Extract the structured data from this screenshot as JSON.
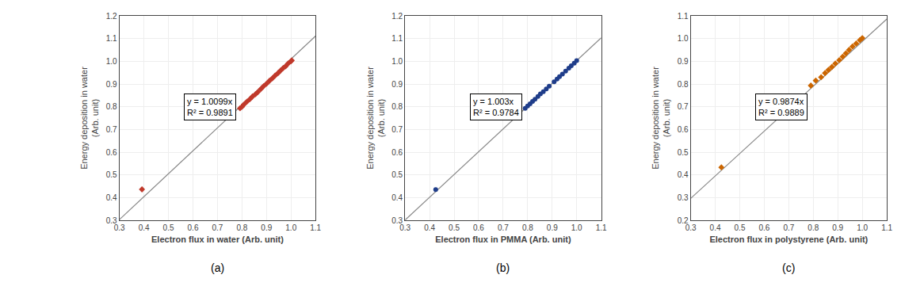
{
  "chart_data": [
    {
      "type": "scatter",
      "caption": "(a)",
      "xlabel": "Electron flux in water (Arb. unit)",
      "ylabel": "Energy deposition in water\n(Arb. unit)",
      "annotation": [
        "y = 1.0099x",
        "R² = 0.9891"
      ],
      "series": [
        {
          "type": "line",
          "color": "#888888",
          "line_style": "solid",
          "x": [
            0.3,
            1.1
          ],
          "values": [
            0.30297,
            1.11089
          ]
        },
        {
          "type": "scatter",
          "color": "#C0392B",
          "marker": "diamond",
          "x": [
            0.392,
            0.792,
            0.8,
            0.808,
            0.82,
            0.832,
            0.843,
            0.855,
            0.865,
            0.877,
            0.888,
            0.9,
            0.912,
            0.924,
            0.935,
            0.947,
            0.958,
            0.968,
            0.978,
            0.988,
            1.0,
            1.003
          ],
          "values": [
            0.436,
            0.793,
            0.8,
            0.81,
            0.822,
            0.833,
            0.845,
            0.855,
            0.865,
            0.878,
            0.89,
            0.901,
            0.914,
            0.925,
            0.937,
            0.948,
            0.96,
            0.97,
            0.978,
            0.99,
            1.0,
            1.004
          ]
        }
      ],
      "xlim": [
        0.3,
        1.1
      ],
      "xticks": [
        0.3,
        0.4,
        0.5,
        0.6,
        0.7,
        0.8,
        0.9,
        {
          "value": 1,
          "label": "1.0"
        },
        1.1
      ],
      "ylim": [
        0.3,
        1.2
      ],
      "yticks": [
        0.3,
        0.4,
        0.5,
        0.6,
        0.7,
        0.8,
        0.9,
        {
          "value": 1,
          "label": "1.0"
        },
        1.1,
        1.2
      ],
      "grid": true
    },
    {
      "type": "scatter",
      "caption": "(b)",
      "xlabel": "Electron flux in PMMA (Arb. unit)",
      "ylabel": "Energy deposition in water\n(Arb. unit)",
      "annotation": [
        "y = 1.003x",
        "R² = 0.9784"
      ],
      "series": [
        {
          "type": "line",
          "color": "#888888",
          "line_style": "solid",
          "x": [
            0.3,
            1.1
          ],
          "values": [
            0.3009,
            1.1033
          ]
        },
        {
          "type": "scatter",
          "color": "#1F3D8A",
          "marker": "circle",
          "x": [
            0.425,
            0.79,
            0.8,
            0.81,
            0.82,
            0.83,
            0.842,
            0.852,
            0.864,
            0.876,
            0.888,
            0.908,
            0.92,
            0.93,
            0.942,
            0.955,
            0.968,
            0.978,
            0.99,
            1.0
          ],
          "values": [
            0.435,
            0.793,
            0.803,
            0.813,
            0.823,
            0.833,
            0.845,
            0.856,
            0.866,
            0.878,
            0.89,
            0.91,
            0.922,
            0.932,
            0.944,
            0.957,
            0.97,
            0.98,
            0.992,
            1.003
          ]
        }
      ],
      "xlim": [
        0.3,
        1.1
      ],
      "xticks": [
        0.3,
        0.4,
        0.5,
        0.6,
        0.7,
        0.8,
        0.9,
        {
          "value": 1,
          "label": "1.0"
        },
        1.1
      ],
      "ylim": [
        0.3,
        1.2
      ],
      "yticks": [
        0.3,
        0.4,
        0.5,
        0.6,
        0.7,
        0.8,
        0.9,
        {
          "value": 1,
          "label": "1.0"
        },
        1.1,
        1.2
      ],
      "grid": true
    },
    {
      "type": "scatter",
      "caption": "(c)",
      "xlabel": "Electron flux in polystyrene (Arb. unit)",
      "ylabel": "Energy deposition in water\n(Arb. unit)",
      "annotation": [
        "y = 0.9874x",
        "R² = 0.9889"
      ],
      "series": [
        {
          "type": "line",
          "color": "#888888",
          "line_style": "solid",
          "x": [
            0.3,
            1.1
          ],
          "values": [
            0.29622,
            1.08614
          ]
        },
        {
          "type": "scatter",
          "color": "#CC6600",
          "marker": "diamond",
          "x": [
            0.425,
            0.79,
            0.81,
            0.832,
            0.848,
            0.862,
            0.876,
            0.89,
            0.906,
            0.92,
            0.933,
            0.946,
            0.96,
            0.975,
            0.99,
            1.0
          ],
          "values": [
            0.433,
            0.793,
            0.815,
            0.83,
            0.848,
            0.862,
            0.875,
            0.89,
            0.905,
            0.92,
            0.935,
            0.95,
            0.965,
            0.978,
            0.993,
            1.002
          ]
        }
      ],
      "xlim": [
        0.3,
        1.1
      ],
      "xticks": [
        0.3,
        0.4,
        0.5,
        0.6,
        0.7,
        0.8,
        0.9,
        {
          "value": 1,
          "label": "1.0"
        },
        1.1
      ],
      "ylim": [
        0.2,
        1.1
      ],
      "yticks": [
        0.2,
        0.3,
        0.4,
        0.5,
        0.6,
        0.7,
        0.8,
        0.9,
        {
          "value": 1,
          "label": "1.0"
        },
        1.1
      ],
      "grid": true
    }
  ]
}
